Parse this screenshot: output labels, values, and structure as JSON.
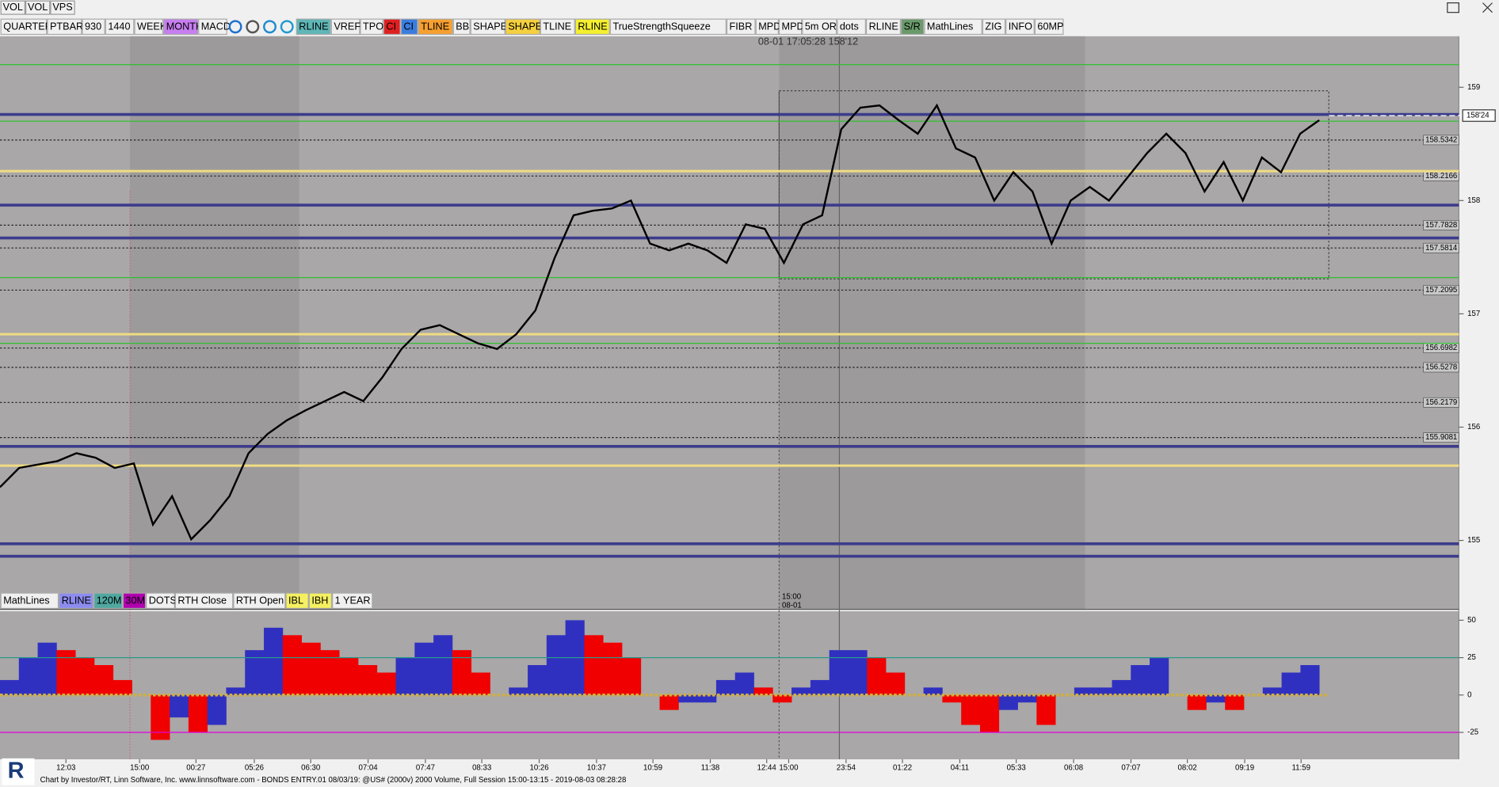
{
  "window_tabs": [
    "VOL",
    "VOL",
    "VPS"
  ],
  "toolbar": [
    {
      "label": "QUARTER",
      "color": "#f0f0f0"
    },
    {
      "label": "PTBAR",
      "color": "#f0f0f0"
    },
    {
      "label": "930",
      "color": "#f0f0f0"
    },
    {
      "label": "1440",
      "color": "#f0f0f0"
    },
    {
      "label": "WEEK",
      "color": "#f0f0f0"
    },
    {
      "label": "MONTH",
      "color": "#c77ef0"
    },
    {
      "label": "MACD",
      "color": "#f0f0f0"
    },
    {
      "label": "RLINE",
      "color": "#5fb6b6"
    },
    {
      "label": "VREF",
      "color": "#f0f0f0"
    },
    {
      "label": "TPO",
      "color": "#f0f0f0"
    },
    {
      "label": "CI",
      "color": "#e02020"
    },
    {
      "label": "CI",
      "color": "#3a7de0"
    },
    {
      "label": "TLINE",
      "color": "#f7a030"
    },
    {
      "label": "BB",
      "color": "#f0f0f0"
    },
    {
      "label": "SHAPE",
      "color": "#f0f0f0"
    },
    {
      "label": "SHAPE",
      "color": "#f5d040"
    },
    {
      "label": "TLINE",
      "color": "#f0f0f0"
    },
    {
      "label": "RLINE",
      "color": "#f5f030"
    },
    {
      "label": "TrueStrengthSqueeze",
      "color": "#f0f0f0"
    },
    {
      "label": "FIBR",
      "color": "#f0f0f0"
    },
    {
      "label": "MPD",
      "color": "#f0f0f0"
    },
    {
      "label": "MPD",
      "color": "#f0f0f0"
    },
    {
      "label": "5m OR",
      "color": "#f0f0f0"
    },
    {
      "label": "dots",
      "color": "#f0f0f0"
    },
    {
      "label": "RLINE",
      "color": "#f0f0f0"
    },
    {
      "label": "S/R",
      "color": "#6a9a6a"
    },
    {
      "label": "MathLines",
      "color": "#f0f0f0"
    },
    {
      "label": "ZIG",
      "color": "#f0f0f0"
    },
    {
      "label": "INFO",
      "color": "#f0f0f0"
    },
    {
      "label": "60MP",
      "color": "#f0f0f0"
    }
  ],
  "lower_toolbar": [
    {
      "label": "MathLines",
      "color": "#f0f0f0"
    },
    {
      "label": "RLINE",
      "color": "#8c8cf0"
    },
    {
      "label": "120M",
      "color": "#4fa8a0"
    },
    {
      "label": "30M",
      "color": "#b000b0"
    },
    {
      "label": "DOTS",
      "color": "#f0f0f0"
    },
    {
      "label": "RTH Close",
      "color": "#f0f0f0"
    },
    {
      "label": "RTH Open",
      "color": "#f0f0f0"
    },
    {
      "label": "IBL",
      "color": "#f5f060"
    },
    {
      "label": "IBH",
      "color": "#f5f060"
    },
    {
      "label": "1 YEAR",
      "color": "#f0f0f0"
    }
  ],
  "crosshair_label": "08-01 17:05:28 158'12",
  "session_marker": {
    "time": "15:00",
    "date": "08-01"
  },
  "price_chart": {
    "type": "line",
    "ylim": [
      154.4,
      159.45
    ],
    "yticks": [
      155,
      156,
      157,
      158,
      159
    ],
    "level_labels": [
      158.5342,
      158.2166,
      157.7828,
      157.5814,
      157.2095,
      156.6982,
      156.5278,
      156.2179,
      155.9081
    ],
    "last_price": {
      "value": 158.75,
      "label": "158'24"
    },
    "color": "#000000",
    "close": [
      155.47,
      155.64,
      155.67,
      155.7,
      155.77,
      155.73,
      155.64,
      155.68,
      155.14,
      155.39,
      155.01,
      155.18,
      155.39,
      155.77,
      155.94,
      156.06,
      156.15,
      156.23,
      156.31,
      156.23,
      156.44,
      156.69,
      156.86,
      156.9,
      156.82,
      156.74,
      156.69,
      156.82,
      157.03,
      157.49,
      157.87,
      157.91,
      157.93,
      158.0,
      157.62,
      157.56,
      157.62,
      157.56,
      157.45,
      157.79,
      157.75,
      157.45,
      157.79,
      157.87,
      158.63,
      158.82,
      158.84,
      158.71,
      158.59,
      158.84,
      158.46,
      158.38,
      158.0,
      158.25,
      158.08,
      157.62,
      158.0,
      158.12,
      158.0,
      158.21,
      158.42,
      158.59,
      158.42,
      158.08,
      158.34,
      158.0,
      158.38,
      158.25,
      158.59,
      158.71
    ],
    "blue_levels": [
      158.76,
      157.96,
      157.67,
      154.97,
      155.83,
      154.86
    ],
    "blue_color": "#3c3c8c",
    "yellow_levels": [
      158.26,
      156.82,
      155.66
    ],
    "yellow_color": "#f0dc82",
    "green_levels": [
      159.2,
      158.7,
      157.32,
      156.74
    ],
    "green_color": "#30c030"
  },
  "oscillator": {
    "type": "bar",
    "ylim": [
      -43,
      56
    ],
    "yticks": [
      50,
      25,
      0,
      -25
    ],
    "rising_color": "#3030c0",
    "falling_color": "#f00000",
    "upper_level": 25,
    "upper_color": "#2a9a8a",
    "lower_level": -25,
    "lower_color": "#e000e0",
    "values": [
      10,
      25,
      35,
      30,
      25,
      20,
      10,
      0,
      -30,
      -15,
      -25,
      -20,
      5,
      30,
      45,
      40,
      35,
      30,
      25,
      20,
      15,
      25,
      35,
      40,
      30,
      15,
      0,
      5,
      20,
      40,
      50,
      40,
      35,
      25,
      0,
      -10,
      -5,
      -5,
      10,
      15,
      5,
      -5,
      5,
      10,
      30,
      30,
      25,
      15,
      0,
      5,
      -5,
      -20,
      -25,
      -10,
      -5,
      -20,
      0,
      5,
      5,
      10,
      20,
      25,
      0,
      -10,
      -5,
      -10,
      0,
      5,
      15,
      20
    ]
  },
  "time_axis": [
    "12:03",
    "15:00",
    "00:27",
    "05:26",
    "06:30",
    "07:04",
    "07:47",
    "08:33",
    "10:26",
    "10:37",
    "10:59",
    "11:38",
    "12:44",
    "15:00",
    "23:54",
    "01:22",
    "04:11",
    "05:33",
    "06:08",
    "07:07",
    "08:02",
    "09:19",
    "11:59"
  ],
  "footer": "Chart by Investor/RT, Linn Software, Inc. www.linnsoftware.com - BONDS  ENTRY.01  08/03/19: @US# (2000v) 2000 Volume, Full Session 15:00-13:15 - 2019-08-03 08:28:28",
  "logo": "R"
}
